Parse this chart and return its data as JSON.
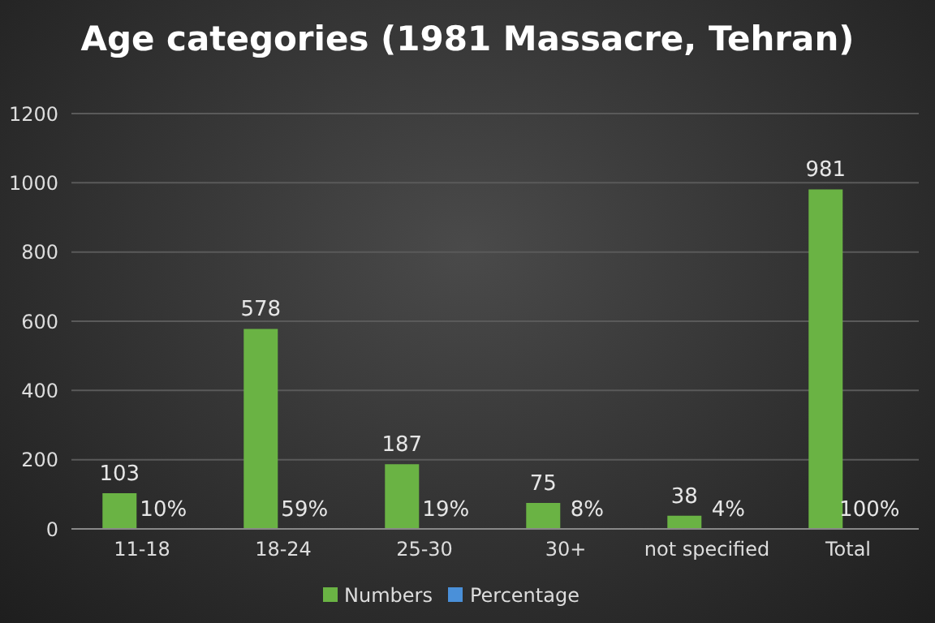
{
  "chart_data": {
    "type": "bar",
    "title": "Age categories (1981 Massacre, Tehran)",
    "categories": [
      "11-18",
      "18-24",
      "25-30",
      "30+",
      "not specified",
      "Total"
    ],
    "series": [
      {
        "name": "Numbers",
        "color": "#6ab344",
        "values": [
          103,
          578,
          187,
          75,
          38,
          981
        ]
      },
      {
        "name": "Percentage",
        "color": "#4a90d9",
        "values": [
          0.1,
          0.59,
          0.19,
          0.08,
          0.04,
          1
        ],
        "value_labels": [
          "10%",
          "59%",
          "19%",
          "8%",
          "4%",
          "100%"
        ]
      }
    ],
    "ylim": [
      0,
      1200
    ],
    "yticks": [
      0,
      200,
      400,
      600,
      800,
      1000,
      1200
    ],
    "grid": "y",
    "legend": "bottom",
    "data_labels": true
  }
}
